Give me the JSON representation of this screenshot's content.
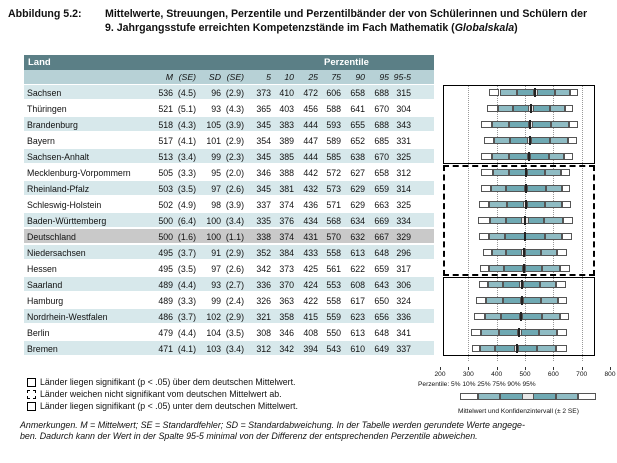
{
  "caption": {
    "label": "Abbildung 5.2:",
    "line1": "Mittelwerte, Streuungen, Perzentile und Perzentilbänder der von Schülerinnen und Schülern der",
    "line2": "9. Jahrgangsstufe erreichten Kompetenzstände im Fach Mathematik (",
    "line2_italic": "Globalskala",
    "line2_end": ")"
  },
  "table": {
    "header_land": "Land",
    "header_perzentile": "Perzentile",
    "columns": [
      "M",
      "(SE)",
      "SD",
      "(SE)",
      "5",
      "10",
      "25",
      "75",
      "90",
      "95",
      "95-5"
    ],
    "rows": [
      {
        "name": "Sachsen",
        "vals": [
          "536",
          "(4.5)",
          "96",
          "(2.9)",
          "373",
          "410",
          "472",
          "606",
          "658",
          "688",
          "315"
        ]
      },
      {
        "name": "Thüringen",
        "vals": [
          "521",
          "(5.1)",
          "93",
          "(4.3)",
          "365",
          "403",
          "456",
          "588",
          "641",
          "670",
          "304"
        ]
      },
      {
        "name": "Brandenburg",
        "vals": [
          "518",
          "(4.3)",
          "105",
          "(3.9)",
          "345",
          "383",
          "444",
          "593",
          "655",
          "688",
          "343"
        ]
      },
      {
        "name": "Bayern",
        "vals": [
          "517",
          "(4.1)",
          "101",
          "(2.9)",
          "354",
          "389",
          "447",
          "589",
          "652",
          "685",
          "331"
        ]
      },
      {
        "name": "Sachsen-Anhalt",
        "vals": [
          "513",
          "(3.4)",
          "99",
          "(2.3)",
          "345",
          "385",
          "444",
          "585",
          "638",
          "670",
          "325"
        ]
      },
      {
        "name": "Mecklenburg-Vorpommern",
        "vals": [
          "505",
          "(3.3)",
          "95",
          "(2.0)",
          "346",
          "388",
          "442",
          "572",
          "627",
          "658",
          "312"
        ]
      },
      {
        "name": "Rheinland-Pfalz",
        "vals": [
          "503",
          "(3.5)",
          "97",
          "(2.6)",
          "345",
          "381",
          "432",
          "573",
          "629",
          "659",
          "314"
        ]
      },
      {
        "name": "Schleswig-Holstein",
        "vals": [
          "502",
          "(4.9)",
          "98",
          "(3.9)",
          "337",
          "374",
          "436",
          "571",
          "629",
          "663",
          "325"
        ]
      },
      {
        "name": "Baden-Württemberg",
        "vals": [
          "500",
          "(6.4)",
          "100",
          "(3.4)",
          "335",
          "376",
          "434",
          "568",
          "634",
          "669",
          "334"
        ]
      },
      {
        "name": "Deutschland",
        "vals": [
          "500",
          "(1.6)",
          "100",
          "(1.1)",
          "338",
          "374",
          "431",
          "570",
          "632",
          "667",
          "329"
        ]
      },
      {
        "name": "Niedersachsen",
        "vals": [
          "495",
          "(3.7)",
          "91",
          "(2.9)",
          "352",
          "384",
          "433",
          "558",
          "613",
          "648",
          "296"
        ]
      },
      {
        "name": "Hessen",
        "vals": [
          "495",
          "(3.5)",
          "97",
          "(2.6)",
          "342",
          "373",
          "425",
          "561",
          "622",
          "659",
          "317"
        ]
      },
      {
        "name": "Saarland",
        "vals": [
          "489",
          "(4.4)",
          "93",
          "(2.7)",
          "336",
          "370",
          "424",
          "553",
          "608",
          "643",
          "306"
        ]
      },
      {
        "name": "Hamburg",
        "vals": [
          "489",
          "(3.3)",
          "99",
          "(2.4)",
          "326",
          "363",
          "422",
          "558",
          "617",
          "650",
          "324"
        ]
      },
      {
        "name": "Nordrhein-Westfalen",
        "vals": [
          "486",
          "(3.7)",
          "102",
          "(2.9)",
          "321",
          "358",
          "415",
          "559",
          "623",
          "656",
          "336"
        ]
      },
      {
        "name": "Berlin",
        "vals": [
          "479",
          "(4.4)",
          "104",
          "(3.5)",
          "308",
          "346",
          "408",
          "550",
          "613",
          "648",
          "341"
        ]
      },
      {
        "name": "Bremen",
        "vals": [
          "471",
          "(4.1)",
          "103",
          "(3.4)",
          "312",
          "342",
          "394",
          "543",
          "610",
          "649",
          "337"
        ]
      }
    ]
  },
  "axis_ticks": [
    "200",
    "300",
    "400",
    "500",
    "600",
    "700",
    "800"
  ],
  "legend": {
    "item1": "Länder liegen signifikant (p < .05) über dem deutschen Mittelwert.",
    "item2": "Länder weichen nicht signifikant vom deutschen Mittelwert ab.",
    "item3": "Länder liegen signifikant (p < .05) unter dem deutschen Mittelwert.",
    "perzentile": "Perzentile:  5%  10%    25%                  75%    90%    95%",
    "band_caption": "Mittelwert und Konfidenzintervall (± 2  SE)"
  },
  "notes": {
    "line1": "Anmerkungen. M = Mittelwert; SE = Standardfehler; SD = Standardabweichung. In der Tabelle werden gerundete Werte angege-",
    "line2": "ben. Dadurch kann der Wert in der Spalte 95-5 minimal von der Differenz der entsprechenden Perzentile abweichen."
  },
  "colors": {
    "header_dark": "#5b7f86",
    "header_light": "#b7d1d6",
    "row_band": "#d7e8eb",
    "highlight_row": "#c9c9c9",
    "bar_mid": "#6fa9b3"
  }
}
